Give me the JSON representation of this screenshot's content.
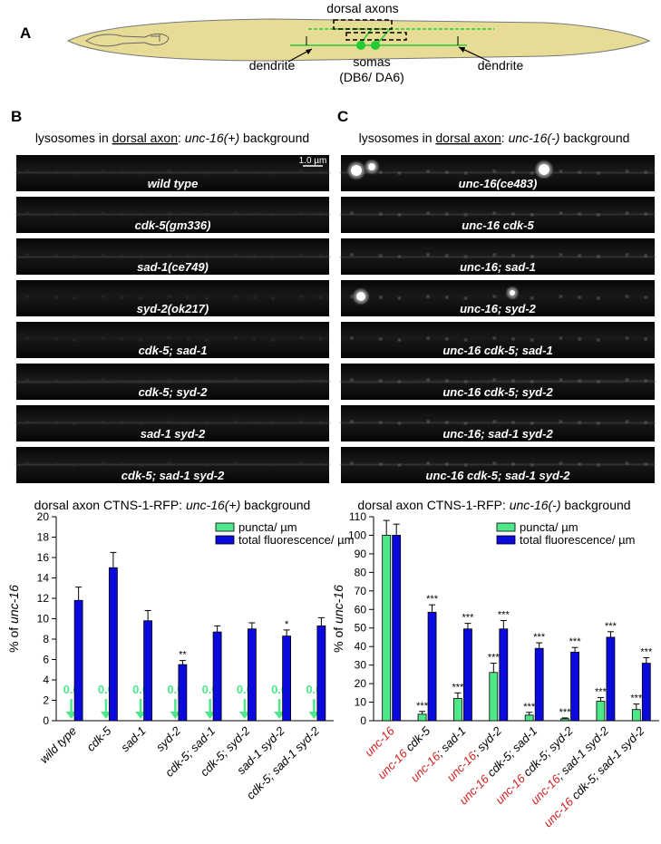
{
  "panel_labels": [
    "A",
    "B",
    "C"
  ],
  "diagram": {
    "dorsal_axons": "dorsal axons",
    "dendrite_left": "dendrite",
    "somas": "somas",
    "somas_sub": "(DB6/ DA6)",
    "dendrite_right": "dendrite"
  },
  "panel_b": {
    "heading": [
      "lysosomes in ",
      "dorsal axon",
      ": ",
      "unc-16(+)",
      " background"
    ],
    "scale_bar": "1.0 µm",
    "strips": [
      "wild type",
      "cdk-5(gm336)",
      "sad-1(ce749)",
      "syd-2(ok217)",
      "cdk-5; sad-1",
      "cdk-5; syd-2",
      "sad-1 syd-2",
      "cdk-5; sad-1 syd-2"
    ]
  },
  "panel_c": {
    "heading": [
      "lysosomes in ",
      "dorsal axon",
      ": ",
      "unc-16(-)",
      " background"
    ],
    "strips": [
      "unc-16(ce483)",
      "unc-16 cdk-5",
      "unc-16; sad-1",
      "unc-16; syd-2",
      "unc-16 cdk-5; sad-1",
      "unc-16 cdk-5; syd-2",
      "unc-16; sad-1 syd-2",
      "unc-16 cdk-5; sad-1 syd-2"
    ]
  },
  "chart_data": [
    {
      "type": "bar",
      "title": [
        "dorsal axon CTNS-1-RFP: ",
        "unc-16(+)",
        " background"
      ],
      "y_label": [
        "% of ",
        "unc-16"
      ],
      "categories": [
        "wild type",
        "cdk-5",
        "sad-1",
        "syd-2",
        "cdk-5; sad-1",
        "cdk-5; syd-2",
        "sad-1 syd-2",
        "cdk-5; sad-1 syd-2"
      ],
      "series": [
        {
          "name": "puncta/ µm",
          "color": "#4ee88a",
          "values": [
            0,
            0,
            0,
            0,
            0,
            0,
            0,
            0
          ],
          "value_labels": [
            "0.0",
            "0.0",
            "0.0",
            "0.0",
            "0.0",
            "0.0",
            "0.0",
            "0.0"
          ]
        },
        {
          "name": "total fluorescence/ µm",
          "color": "#0a0adc",
          "values": [
            11.8,
            15.0,
            9.8,
            5.5,
            8.7,
            9.0,
            8.3,
            9.3
          ],
          "errors": [
            1.3,
            1.5,
            1.0,
            0.4,
            0.6,
            0.6,
            0.6,
            0.8
          ],
          "annotations": [
            null,
            null,
            null,
            "**",
            null,
            null,
            "*",
            null
          ]
        }
      ],
      "ylim": [
        0,
        20
      ],
      "yticks": [
        0,
        2,
        4,
        6,
        8,
        10,
        12,
        14,
        16,
        18,
        20
      ]
    },
    {
      "type": "bar",
      "title": [
        "dorsal axon CTNS-1-RFP: ",
        "unc-16(-)",
        " background"
      ],
      "y_label": [
        "% of ",
        "unc-16"
      ],
      "categories": [
        "unc-16",
        "unc-16 cdk-5",
        "unc-16; sad-1",
        "unc-16; syd-2",
        "unc-16 cdk-5; sad-1",
        "unc-16 cdk-5; syd-2",
        "unc-16; sad-1 syd-2",
        "unc-16 cdk-5; sad-1 syd-2"
      ],
      "category_highlight": "unc-16",
      "category_highlight_color": "#d42020",
      "series": [
        {
          "name": "puncta/ µm",
          "color": "#4ee88a",
          "values": [
            100,
            3.5,
            12,
            26,
            3,
            1,
            10.5,
            6
          ],
          "errors": [
            8,
            1.5,
            3,
            5,
            1.5,
            0.5,
            2,
            3
          ],
          "annotations": [
            null,
            "***",
            "***",
            "***",
            "***",
            "***",
            "***",
            "***"
          ]
        },
        {
          "name": "total fluorescence/ µm",
          "color": "#0a0adc",
          "values": [
            100,
            58.5,
            49.5,
            49.5,
            39,
            37,
            45,
            31
          ],
          "errors": [
            6,
            4,
            3,
            4.5,
            3,
            2.5,
            3,
            3
          ],
          "annotations": [
            null,
            "***",
            "***",
            "***",
            "***",
            "***",
            "***",
            "***"
          ]
        }
      ],
      "ylim": [
        0,
        110
      ],
      "yticks": [
        0,
        10,
        20,
        30,
        40,
        50,
        60,
        70,
        80,
        90,
        100,
        110
      ]
    }
  ]
}
